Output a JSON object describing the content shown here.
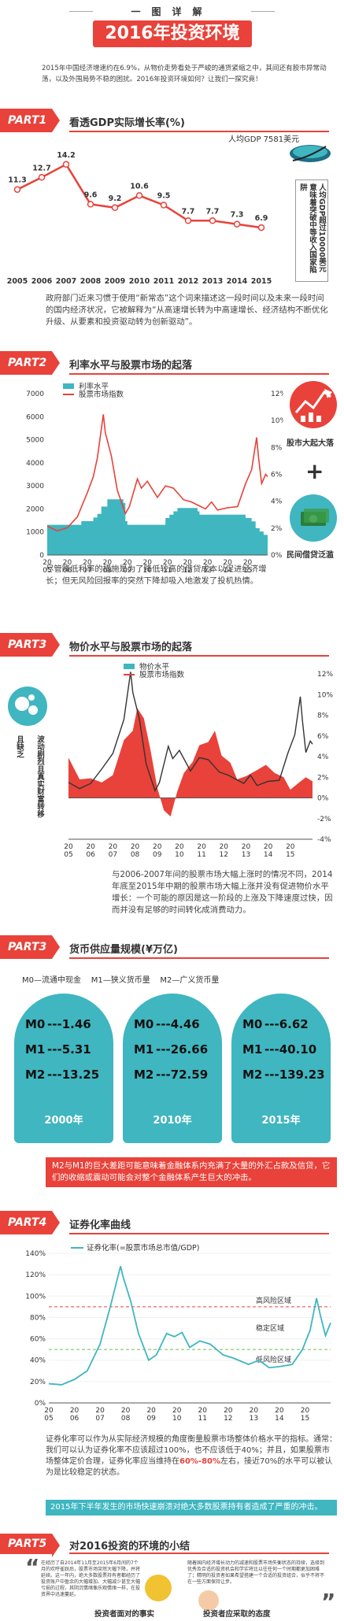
{
  "header": {
    "subtitle": "一图详解",
    "title": "2016年投资环境",
    "intro": "2015年中国经济增速约在6.9%，从物价走势看处于严峻的通货紧缩之中，其间还有股市异常动荡，以及外围局势不稳的困扰。2016年投资环境如何？让我们一探究竟！"
  },
  "part1": {
    "tag": "PART1",
    "title": "看透GDP实际增长率(%)",
    "callout_top": "人均GDP 7581美元",
    "callout_side": "人均GDP超过10000美元意味着突破中等收入国家陷阱",
    "text": "政府部门近来习惯于使用“新常态”这个词来描述这一段时间以及未来一段时间的国内经济状况，它被解释为“从高速增长转为中高速增长、经济结构不断优化升级、从要素和投资驱动转为创新驱动”。"
  },
  "part2": {
    "tag": "PART2",
    "title": "利率水平与股票市场的起落",
    "legend_rate": "利率水平",
    "legend_index": "股票市场指数",
    "icon1_label": "股市大起大落",
    "icon2_label": "民间借贷泛滥",
    "plus": "+",
    "text": "尽管降低利率的措施是为了降低较高的借贷成本以促进经济增长；但无风险回报率的突然下降却吸入地激发了投机热情。"
  },
  "part3": {
    "tag": "PART3",
    "title": "物价水平与股票市场的起落",
    "legend_price": "物价水平",
    "legend_index": "股票市场指数",
    "side_label": "波动剧烈且真实财富转移",
    "side_label_b": "且缺乏",
    "text": "与2006-2007年间的股票市场大幅上涨时的情况不同，2014年底至2015年中期的股票市场大幅上涨并没有促进物价水平增长：一个可能的原因是这一阶段的上涨及下降速度过快，因而并没有足够的时间转化成消费动力。"
  },
  "part3b": {
    "tag": "PART3",
    "title": "货币供应量规模(¥万亿)",
    "legend": "M0—流通中现金    M1—狭义货币量    M2—广义货币量",
    "columns": [
      {
        "year": "2000年",
        "m0": "1.46",
        "m1": "5.31",
        "m2": "13.25"
      },
      {
        "year": "2010年",
        "m0": "4.46",
        "m1": "26.66",
        "m2": "72.59"
      },
      {
        "year": "2015年",
        "m0": "6.62",
        "m1": "40.10",
        "m2": "139.23"
      }
    ],
    "labels": {
      "m0": "M0",
      "m1": "M1",
      "m2": "M2"
    },
    "dash": "---",
    "text": "M2与M1的巨大差距可能意味着金融体系内充满了大量的外汇占款及信贷，它们的收缩或震动可能会对整个金融体系产生巨大的冲击。"
  },
  "part4": {
    "tag": "PART4",
    "title": "证券化率曲线",
    "legend": "证券化率(=股票市场总市值/GDP)",
    "zone_high": "高风险区域",
    "zone_stable": "稳定区域",
    "zone_low": "低风险区域",
    "text_a": "证券化率可以作为从实际经济规模的角度衡量股票市场整体价格水平的指标。通常：我们可以认为证券化率不应该超过100%，也不应该低于40%；并且，如果股票市场整体定价合理，证券化率应当维持在",
    "text_hl": "60%-80%",
    "text_b": "左右，接近70%的水平可以被认为是比较稳定的状态。",
    "blue_text": "2015年下半年发生的市场快速崩溃对绝大多数股票持有者造成了严重的冲击。"
  },
  "part5": {
    "tag": "PART5",
    "title": "对2016投资的环境的小结",
    "left_text": "在经历了自2014年11月至2015年6月间的7个月的欢呼雀跃后，股票市场突然大幅下降，并将延续。这一年内，绝大多数股票持有者都经历了投资账户中盈余的大幅增加、大幅减少甚至大幅亏损的过程，其阴沉情绪像乐观情绪一样，在投资界中迅速蔓延。",
    "right_text": "随着国内经济增长动力的减速和股票市场失衡状态的持续，选择到优秀及合适的投资机会和学实将比以往任何一个时期都更加困难了；精明的投资者如果希望搭建一个合适的投资组合，似乎不将不在一些方面保持让步。",
    "left_caption": "投资者面对的事实",
    "right_caption": "投资者应采取的态度",
    "quote_open": "“",
    "quote_close": "”"
  },
  "chart_data": [
    {
      "type": "line",
      "title": "看透GDP实际增长率(%)",
      "x": [
        "2005",
        "2006",
        "2007",
        "2008",
        "2009",
        "2010",
        "2011",
        "2012",
        "2013",
        "2014",
        "2015"
      ],
      "values": [
        11.3,
        12.7,
        14.2,
        9.6,
        9.2,
        10.6,
        9.5,
        7.7,
        7.7,
        7.3,
        6.9
      ],
      "value_labels": [
        "11.3",
        "12.7",
        "14.2",
        "9.6",
        "9.2",
        "10.6",
        "9.5",
        "7.7",
        "7.7",
        "7.3",
        "6.9"
      ],
      "color": "#e8423a"
    },
    {
      "type": "area",
      "title": "利率水平与股票市场的起落",
      "x_ticks": [
        "20\n05",
        "20\n06",
        "20\n07",
        "20\n08",
        "20\n09",
        "20\n10",
        "20\n11",
        "20\n12",
        "20\n13",
        "20\n14",
        "20\n15"
      ],
      "y_left_ticks": [
        "0",
        "1000",
        "2000",
        "3000",
        "4000",
        "5000",
        "6000",
        "7000"
      ],
      "y_right_ticks": [
        "0%",
        "2%",
        "4%",
        "6%",
        "8%",
        "10%",
        "12%"
      ],
      "series": [
        {
          "name": "利率水平",
          "axis": "right",
          "color": "#3fb6c0",
          "points": [
            [
              2005,
              2.25
            ],
            [
              2006.6,
              2.25
            ],
            [
              2006.7,
              2.52
            ],
            [
              2007.3,
              2.79
            ],
            [
              2007.5,
              3.06
            ],
            [
              2007.7,
              3.6
            ],
            [
              2008.0,
              4.14
            ],
            [
              2008.8,
              3.87
            ],
            [
              2008.9,
              2.52
            ],
            [
              2009.0,
              2.25
            ],
            [
              2010.8,
              2.25
            ],
            [
              2010.9,
              2.75
            ],
            [
              2011.1,
              3.0
            ],
            [
              2011.3,
              3.25
            ],
            [
              2011.5,
              3.5
            ],
            [
              2012.5,
              3.25
            ],
            [
              2012.6,
              3.0
            ],
            [
              2014.8,
              3.0
            ],
            [
              2014.9,
              2.75
            ],
            [
              2015.2,
              2.5
            ],
            [
              2015.4,
              2.0
            ],
            [
              2015.6,
              1.75
            ],
            [
              2015.8,
              1.5
            ],
            [
              2016.0,
              1.5
            ]
          ]
        },
        {
          "name": "股票市场指数",
          "axis": "left",
          "color": "#e8423a",
          "points": [
            [
              2005,
              1250
            ],
            [
              2005.5,
              1050
            ],
            [
              2006,
              1180
            ],
            [
              2006.5,
              1650
            ],
            [
              2007,
              2700
            ],
            [
              2007.3,
              3400
            ],
            [
              2007.5,
              4200
            ],
            [
              2007.8,
              6100
            ],
            [
              2007.9,
              5300
            ],
            [
              2008.2,
              4300
            ],
            [
              2008.5,
              2800
            ],
            [
              2008.9,
              1800
            ],
            [
              2009.1,
              2100
            ],
            [
              2009.5,
              3300
            ],
            [
              2009.7,
              2900
            ],
            [
              2010,
              3200
            ],
            [
              2010.5,
              2500
            ],
            [
              2010.9,
              3000
            ],
            [
              2011.3,
              2900
            ],
            [
              2011.8,
              2400
            ],
            [
              2012.2,
              2300
            ],
            [
              2012.9,
              2000
            ],
            [
              2013.2,
              2300
            ],
            [
              2013.5,
              1950
            ],
            [
              2014,
              2050
            ],
            [
              2014.5,
              2100
            ],
            [
              2014.9,
              3100
            ],
            [
              2015.2,
              3700
            ],
            [
              2015.45,
              5100
            ],
            [
              2015.55,
              4200
            ],
            [
              2015.7,
              3100
            ],
            [
              2015.9,
              3500
            ],
            [
              2016,
              3400
            ]
          ]
        }
      ],
      "ylim_left": [
        0,
        7000
      ],
      "ylim_right": [
        0,
        12
      ]
    },
    {
      "type": "area",
      "title": "物价水平与股票市场的起落",
      "x_ticks": [
        "20\n05",
        "20\n06",
        "20\n07",
        "20\n08",
        "20\n09",
        "20\n10",
        "20\n11",
        "20\n12",
        "20\n13",
        "20\n14",
        "20\n15"
      ],
      "y_right_ticks": [
        "-4%",
        "-2%",
        "0%",
        "2%",
        "4%",
        "6%",
        "8%",
        "10%",
        "12%"
      ],
      "series": [
        {
          "name": "物价水平",
          "axis": "right",
          "color": "#e8423a",
          "points": [
            [
              2005,
              3.9
            ],
            [
              2005.5,
              1.8
            ],
            [
              2006,
              1.9
            ],
            [
              2006.5,
              1.5
            ],
            [
              2007,
              2.2
            ],
            [
              2007.5,
              5.6
            ],
            [
              2007.9,
              6.5
            ],
            [
              2008.1,
              8.7
            ],
            [
              2008.4,
              7.7
            ],
            [
              2008.7,
              4.6
            ],
            [
              2009,
              1.0
            ],
            [
              2009.3,
              -1.2
            ],
            [
              2009.6,
              -1.8
            ],
            [
              2009.9,
              0.6
            ],
            [
              2010.2,
              2.4
            ],
            [
              2010.6,
              3.5
            ],
            [
              2010.9,
              5.1
            ],
            [
              2011.3,
              5.4
            ],
            [
              2011.6,
              6.5
            ],
            [
              2011.9,
              4.1
            ],
            [
              2012.3,
              3.4
            ],
            [
              2012.6,
              1.8
            ],
            [
              2013,
              2.1
            ],
            [
              2013.5,
              2.7
            ],
            [
              2013.9,
              3.2
            ],
            [
              2014.3,
              2.4
            ],
            [
              2014.7,
              2.0
            ],
            [
              2015,
              0.8
            ],
            [
              2015.4,
              1.5
            ],
            [
              2015.7,
              2.0
            ],
            [
              2016,
              1.6
            ]
          ]
        },
        {
          "name": "股票市场指数",
          "axis": "right",
          "color": "#333333",
          "points": [
            [
              2005,
              1.5
            ],
            [
              2005.5,
              0.9
            ],
            [
              2006,
              1.4
            ],
            [
              2006.5,
              2.8
            ],
            [
              2007,
              4.3
            ],
            [
              2007.5,
              7.6
            ],
            [
              2007.8,
              12.2
            ],
            [
              2007.9,
              10.2
            ],
            [
              2008.2,
              7.6
            ],
            [
              2008.5,
              3.3
            ],
            [
              2008.9,
              0.7
            ],
            [
              2009.1,
              1.5
            ],
            [
              2009.5,
              5.0
            ],
            [
              2009.7,
              3.8
            ],
            [
              2010,
              4.6
            ],
            [
              2010.5,
              2.6
            ],
            [
              2010.9,
              3.9
            ],
            [
              2011.3,
              3.7
            ],
            [
              2011.8,
              2.5
            ],
            [
              2012.2,
              2.2
            ],
            [
              2012.9,
              1.4
            ],
            [
              2013.2,
              2.2
            ],
            [
              2013.5,
              1.2
            ],
            [
              2014,
              1.6
            ],
            [
              2014.5,
              1.7
            ],
            [
              2014.9,
              4.4
            ],
            [
              2015.2,
              6.1
            ],
            [
              2015.45,
              9.8
            ],
            [
              2015.55,
              7.4
            ],
            [
              2015.7,
              4.4
            ],
            [
              2015.9,
              5.5
            ],
            [
              2016,
              5.2
            ]
          ]
        }
      ],
      "ylim_right": [
        -4,
        12
      ]
    },
    {
      "type": "line",
      "title": "证券化率曲线",
      "series_name": "证券化率(=股票市场总市值/GDP)",
      "x_ticks": [
        "20\n05",
        "20\n06",
        "20\n07",
        "20\n08",
        "20\n09",
        "20\n10",
        "20\n11",
        "20\n12",
        "20\n13",
        "20\n14",
        "20\n15"
      ],
      "y_ticks": [
        "0%",
        "20%",
        "40%",
        "60%",
        "80%",
        "100%",
        "120%",
        "140%"
      ],
      "ylim": [
        0,
        140
      ],
      "bands": {
        "high": 90,
        "stable": 50
      },
      "points": [
        [
          2005,
          18
        ],
        [
          2005.5,
          17
        ],
        [
          2006,
          22
        ],
        [
          2006.5,
          30
        ],
        [
          2007,
          55
        ],
        [
          2007.4,
          90
        ],
        [
          2007.8,
          128
        ],
        [
          2007.9,
          118
        ],
        [
          2008.2,
          95
        ],
        [
          2008.5,
          65
        ],
        [
          2008.9,
          40
        ],
        [
          2009.2,
          45
        ],
        [
          2009.6,
          65
        ],
        [
          2009.9,
          62
        ],
        [
          2010.2,
          66
        ],
        [
          2010.5,
          52
        ],
        [
          2010.9,
          58
        ],
        [
          2011.3,
          55
        ],
        [
          2011.8,
          45
        ],
        [
          2012.2,
          42
        ],
        [
          2012.8,
          36
        ],
        [
          2013.2,
          40
        ],
        [
          2013.6,
          33
        ],
        [
          2014,
          34
        ],
        [
          2014.5,
          36
        ],
        [
          2014.9,
          50
        ],
        [
          2015.2,
          68
        ],
        [
          2015.45,
          98
        ],
        [
          2015.6,
          82
        ],
        [
          2015.8,
          63
        ],
        [
          2016,
          75
        ]
      ]
    }
  ]
}
